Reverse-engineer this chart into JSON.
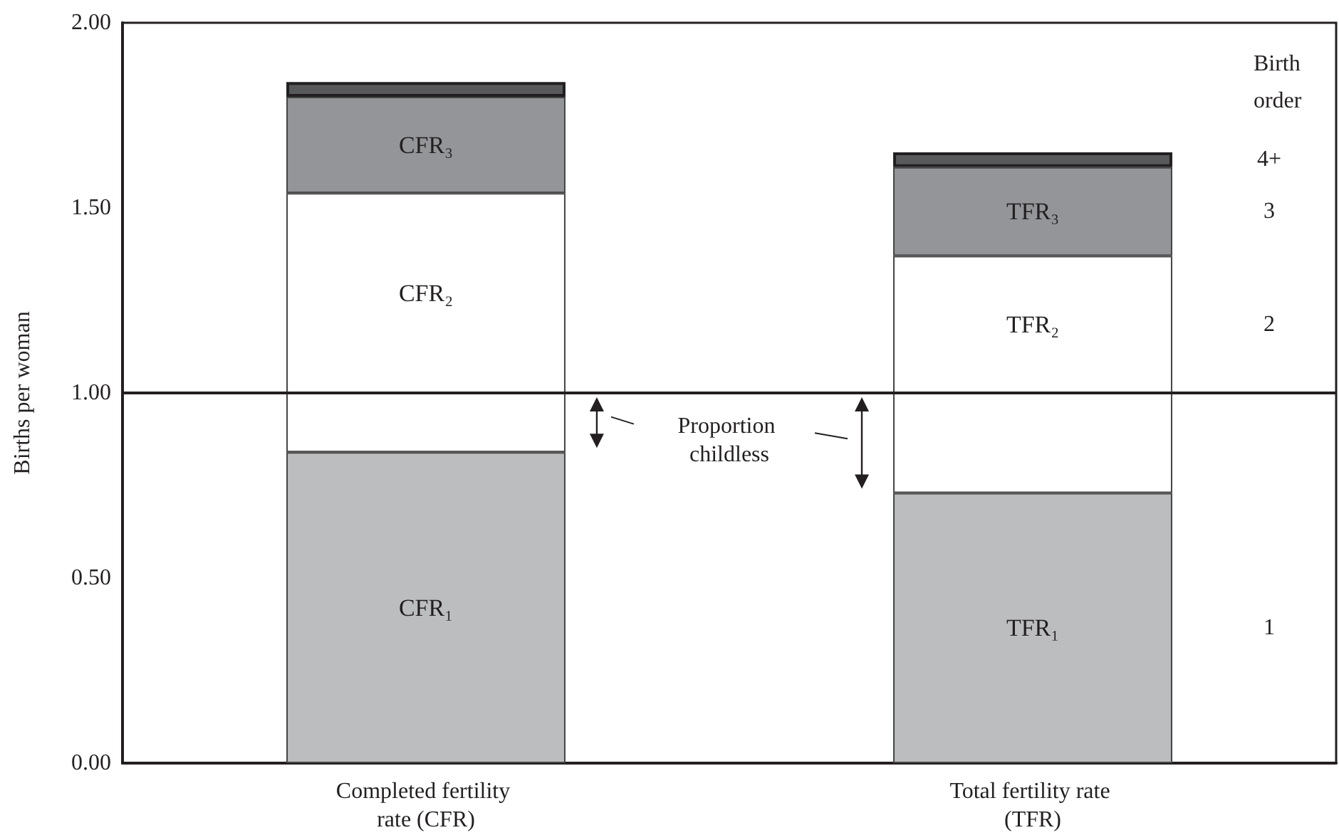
{
  "chart_data": {
    "type": "bar",
    "stacked": true,
    "ylabel": "Births per woman",
    "legend_title": "Birth order",
    "categories": [
      "Completed fertility rate (CFR)",
      "Total fertility rate (TFR)"
    ],
    "series": [
      {
        "name": "1",
        "color": "#bcbdbf",
        "values": [
          0.84,
          0.73
        ],
        "value_labels": [
          "CFR₁",
          "TFR₁"
        ]
      },
      {
        "color": "#ffffff",
        "values": [
          0.16,
          0.27
        ]
      },
      {
        "name": "2",
        "color": "#ffffff",
        "values": [
          0.54,
          0.37
        ],
        "value_labels": [
          "CFR₂",
          "TFR₂"
        ]
      },
      {
        "name": "3",
        "color": "#939598",
        "values": [
          0.26,
          0.24
        ],
        "value_labels": [
          "CFR₃",
          "TFR₃"
        ]
      },
      {
        "name": "4+",
        "color": "#58595b",
        "values": [
          0.04,
          0.04
        ]
      }
    ],
    "ylim": [
      0,
      2
    ],
    "yticks": [
      {
        "value": 0,
        "label": "0.00"
      },
      {
        "value": 0.5,
        "label": "0.50"
      },
      {
        "value": 1,
        "label": "1.00"
      },
      {
        "value": 1.5,
        "label": "1.50"
      },
      {
        "value": 2,
        "label": "2.00"
      }
    ],
    "ref_lines": [
      {
        "axis": "y",
        "value": 1,
        "color": "#231f20"
      }
    ],
    "annotations": [
      "Proportion childless"
    ],
    "grid": false,
    "legend": false
  }
}
